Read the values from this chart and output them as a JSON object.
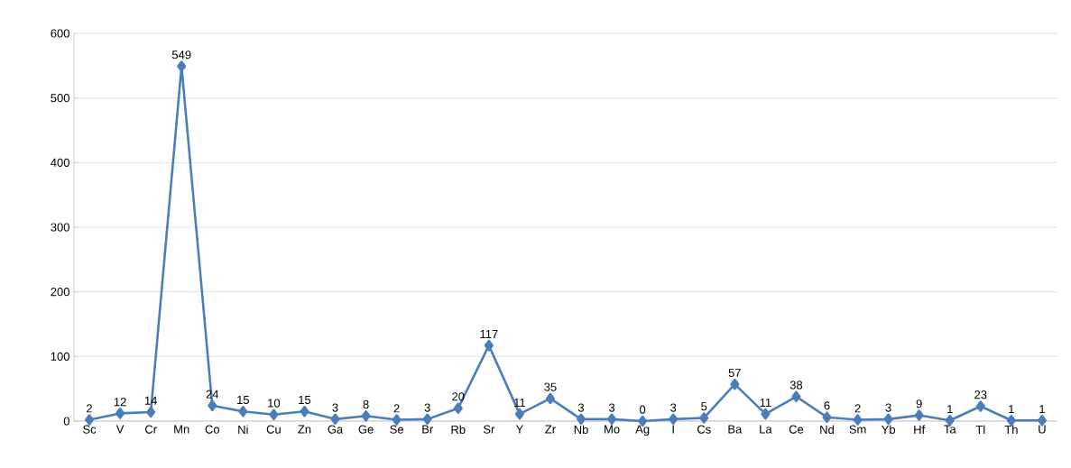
{
  "chart_data": {
    "type": "line",
    "categories": [
      "Sc",
      "V",
      "Cr",
      "Mn",
      "Co",
      "Ni",
      "Cu",
      "Zn",
      "Ga",
      "Ge",
      "Se",
      "Br",
      "Rb",
      "Sr",
      "Y",
      "Zr",
      "Nb",
      "Mo",
      "Ag",
      "I",
      "Cs",
      "Ba",
      "La",
      "Ce",
      "Nd",
      "Sm",
      "Yb",
      "Hf",
      "Ta",
      "Tl",
      "Th",
      "U"
    ],
    "values": [
      2,
      12,
      14,
      549,
      24,
      15,
      10,
      15,
      3,
      8,
      2,
      3,
      20,
      117,
      11,
      35,
      3,
      3,
      0,
      3,
      5,
      57,
      11,
      38,
      6,
      2,
      3,
      9,
      1,
      23,
      1,
      1
    ],
    "color": "#4a7ebb",
    "ylim": [
      0,
      600
    ],
    "yticks": [
      0,
      100,
      200,
      300,
      400,
      500,
      600
    ],
    "grid": "y",
    "marker": "diamond",
    "line_style": "solid",
    "data_labels": true
  }
}
